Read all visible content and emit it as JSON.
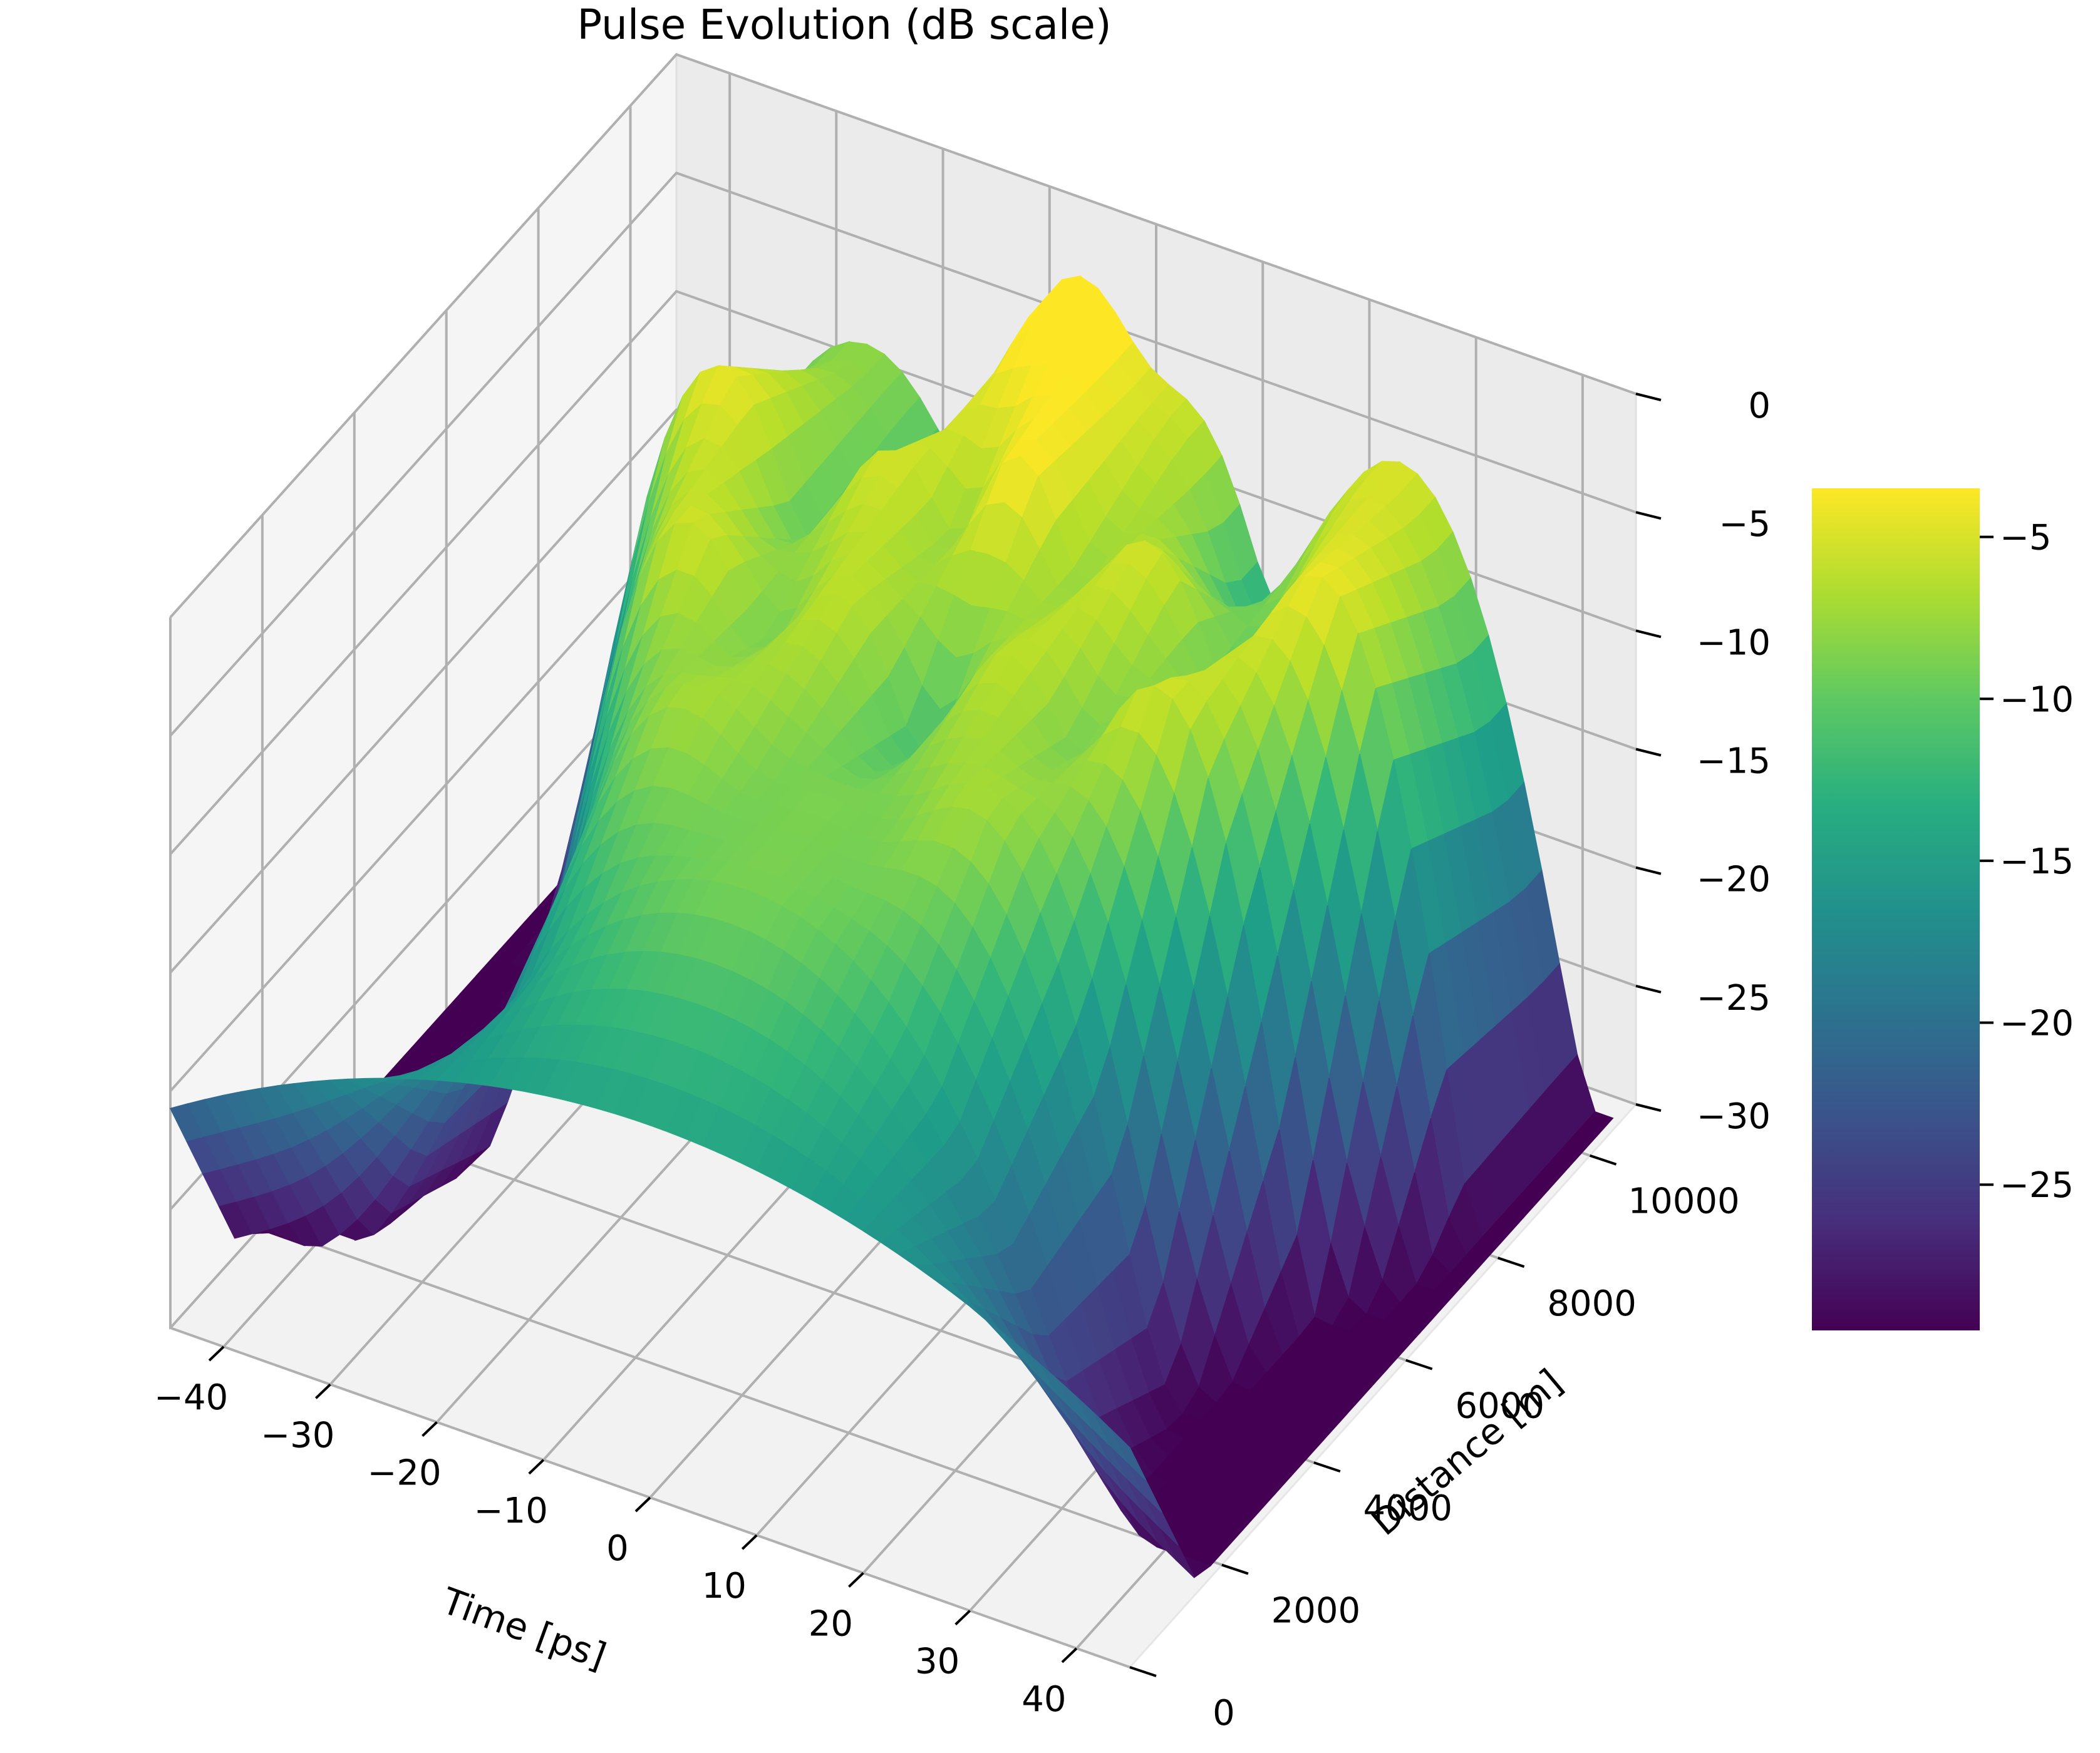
{
  "chart_data": {
    "type": "surface",
    "title": "Pulse Evolution (dB scale)",
    "xlabel": "Time [ps]",
    "ylabel": "Distance [m]",
    "zlabel": "",
    "xlim": [
      -45,
      45
    ],
    "ylim": [
      0,
      11000
    ],
    "zlim": [
      -30,
      0
    ],
    "x_ticks": [
      -40,
      -30,
      -20,
      -10,
      0,
      10,
      20,
      30,
      40
    ],
    "x_tick_labels": [
      "−40",
      "−30",
      "−20",
      "−10",
      "0",
      "10",
      "20",
      "30",
      "40"
    ],
    "y_ticks": [
      0,
      2000,
      4000,
      6000,
      8000,
      10000
    ],
    "y_tick_labels": [
      "0",
      "2000",
      "4000",
      "6000",
      "8000",
      "10000"
    ],
    "z_ticks": [
      -30,
      -25,
      -20,
      -15,
      -10,
      -5,
      0
    ],
    "z_tick_labels": [
      "−30",
      "−25",
      "−20",
      "−15",
      "−10",
      "−5",
      "0"
    ],
    "colormap": "viridis",
    "grid": true,
    "colorbar": {
      "range": [
        -29.5,
        -3.5
      ],
      "ticks": [
        -25,
        -20,
        -15,
        -10,
        -5
      ],
      "tick_labels": [
        "−25",
        "−20",
        "−15",
        "−10",
        "−5"
      ],
      "placement": "right"
    },
    "surface_rows": [
      {
        "distance": 0,
        "peaks": [
          {
            "t": 0,
            "db": -14.5,
            "width": 26
          }
        ]
      },
      {
        "distance": 2000,
        "peaks": [
          {
            "t": -6,
            "db": -11,
            "width": 9
          },
          {
            "t": 6,
            "db": -11,
            "width": 9
          }
        ]
      },
      {
        "distance": 4000,
        "peaks": [
          {
            "t": -14,
            "db": -7,
            "width": 5
          },
          {
            "t": 0,
            "db": -9,
            "width": 6
          },
          {
            "t": 14,
            "db": -7,
            "width": 5
          }
        ]
      },
      {
        "distance": 6000,
        "peaks": [
          {
            "t": -22,
            "db": -5,
            "width": 4
          },
          {
            "t": -8,
            "db": -6,
            "width": 4
          },
          {
            "t": 8,
            "db": -6,
            "width": 4
          },
          {
            "t": 22,
            "db": -5,
            "width": 4
          }
        ]
      },
      {
        "distance": 8000,
        "peaks": [
          {
            "t": -28,
            "db": -4,
            "width": 4
          },
          {
            "t": -12,
            "db": -5,
            "width": 4
          },
          {
            "t": 0,
            "db": -3.5,
            "width": 3
          },
          {
            "t": 12,
            "db": -5,
            "width": 4
          },
          {
            "t": 28,
            "db": -4,
            "width": 4
          }
        ]
      },
      {
        "distance": 10000,
        "peaks": [
          {
            "t": -25,
            "db": -8,
            "width": 6
          },
          {
            "t": -5,
            "db": -2,
            "width": 4
          },
          {
            "t": 5,
            "db": -6,
            "width": 4
          },
          {
            "t": 25,
            "db": -5,
            "width": 5
          }
        ]
      }
    ]
  }
}
